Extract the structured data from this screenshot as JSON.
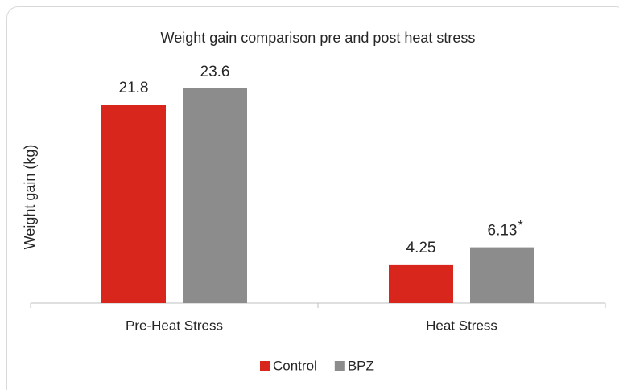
{
  "chart_data": {
    "type": "bar",
    "title": "Weight gain comparison pre and post heat stress",
    "y_label": "Weight gain (kg)",
    "categories": [
      "Pre-Heat Stress",
      "Heat Stress"
    ],
    "series": [
      {
        "name": "Control",
        "color": "#d9261c",
        "values": [
          21.8,
          4.25
        ]
      },
      {
        "name": "BPZ",
        "color": "#8c8c8c",
        "values": [
          23.6,
          6.13
        ]
      }
    ],
    "annotation": "*",
    "ylim": [
      0,
      25
    ],
    "legend": "bottom"
  }
}
